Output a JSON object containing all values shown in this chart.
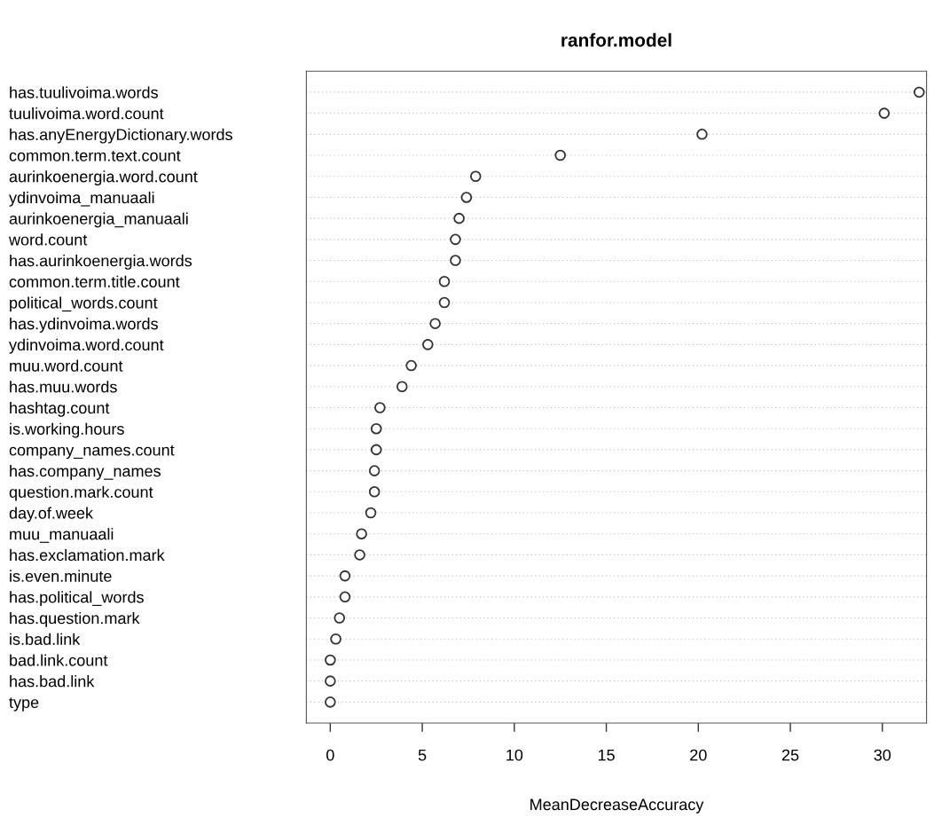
{
  "chart_data": {
    "type": "scatter",
    "title": "ranfor.model",
    "xlabel": "MeanDecreaseAccuracy",
    "categories": [
      "has.tuulivoima.words",
      "tuulivoima.word.count",
      "has.anyEnergyDictionary.words",
      "common.term.text.count",
      "aurinkoenergia.word.count",
      "ydinvoima_manuaali",
      "aurinkoenergia_manuaali",
      "word.count",
      "has.aurinkoenergia.words",
      "common.term.title.count",
      "political_words.count",
      "has.ydinvoima.words",
      "ydinvoima.word.count",
      "muu.word.count",
      "has.muu.words",
      "hashtag.count",
      "is.working.hours",
      "company_names.count",
      "has.company_names",
      "question.mark.count",
      "day.of.week",
      "muu_manuaali",
      "has.exclamation.mark",
      "is.even.minute",
      "has.political_words",
      "has.question.mark",
      "is.bad.link",
      "bad.link.count",
      "has.bad.link",
      "type"
    ],
    "values": [
      32.0,
      30.1,
      20.2,
      12.5,
      7.9,
      7.4,
      7.0,
      6.8,
      6.8,
      6.2,
      6.2,
      5.7,
      5.3,
      4.4,
      3.9,
      2.7,
      2.5,
      2.5,
      2.4,
      2.4,
      2.2,
      1.7,
      1.6,
      0.8,
      0.8,
      0.5,
      0.3,
      0,
      0,
      0
    ],
    "orientation": "horizontal",
    "color": "#333333",
    "marker": "circle",
    "grid": "y",
    "xlim": [
      -1.3,
      32.4
    ],
    "xticks": [
      0,
      5,
      10,
      15,
      20,
      25,
      30
    ]
  }
}
